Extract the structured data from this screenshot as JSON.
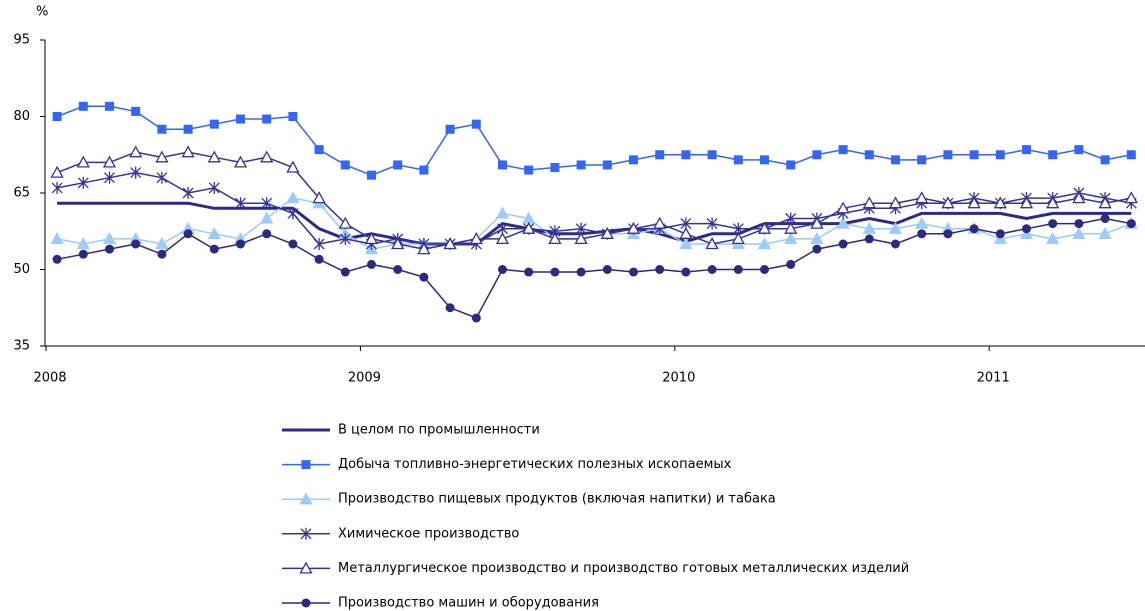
{
  "chart_data": {
    "type": "line",
    "y_unit": "%",
    "categories": [
      "2008",
      null,
      null,
      null,
      null,
      null,
      null,
      null,
      null,
      null,
      null,
      null,
      "2009",
      null,
      null,
      null,
      null,
      null,
      null,
      null,
      null,
      null,
      null,
      null,
      "2010",
      null,
      null,
      null,
      null,
      null,
      null,
      null,
      null,
      null,
      null,
      null,
      "2011",
      null,
      null,
      null,
      null,
      null
    ],
    "ylim": [
      35,
      95
    ],
    "yticks": [
      35,
      50,
      65,
      80,
      95
    ],
    "series": [
      {
        "name": "В целом по промышленности",
        "color": "#2b2a8c",
        "marker": "none",
        "width": 3,
        "values": [
          63,
          63,
          63,
          63,
          63,
          63,
          62,
          62,
          62,
          62,
          58,
          56,
          57,
          56,
          55,
          55,
          55,
          59,
          58,
          57,
          57,
          57.5,
          58,
          57,
          55.5,
          57,
          57,
          59,
          59,
          59,
          59,
          60,
          59,
          61,
          61,
          61,
          61,
          60,
          61,
          61,
          61,
          61
        ]
      },
      {
        "name": "Добыча топливно-энергетических полезных ископаемых",
        "color": "#3366ff",
        "marker": "square",
        "width": 1.5,
        "values": [
          80,
          82,
          82,
          81,
          77.5,
          77.5,
          78.5,
          79.5,
          79.5,
          80,
          73.5,
          70.5,
          68.5,
          70.5,
          69.5,
          77.5,
          78.5,
          70.5,
          69.5,
          70,
          70.5,
          70.5,
          71.5,
          72.5,
          72.5,
          72.5,
          71.5,
          71.5,
          70.5,
          72.5,
          73.5,
          72.5,
          71.5,
          71.5,
          72.5,
          72.5,
          72.5,
          73.5,
          72.5,
          73.5,
          71.5,
          72.5
        ]
      },
      {
        "name": "Производство пищевых продуктов (включая напитки) и табака",
        "color": "#99ccff",
        "marker": "triangle",
        "width": 1.5,
        "values": [
          56,
          55,
          56,
          56,
          55,
          58,
          57,
          56,
          60,
          64,
          63,
          57,
          54,
          55,
          55,
          55,
          56,
          61,
          60,
          56,
          56,
          57,
          57,
          58,
          55,
          55,
          55,
          55,
          56,
          56,
          59,
          58,
          58,
          59,
          58,
          58,
          56,
          57,
          56,
          57,
          57,
          59
        ]
      },
      {
        "name": "Химическое производство",
        "color": "#333399",
        "marker": "star",
        "width": 1.5,
        "values": [
          66,
          67,
          68,
          69,
          68,
          65,
          66,
          63,
          63,
          61,
          55,
          56,
          55,
          56,
          55,
          55,
          55,
          58,
          58,
          57.5,
          58,
          57,
          58,
          58,
          59,
          59,
          58,
          58,
          60,
          60,
          61,
          62,
          62,
          63,
          63,
          64,
          63,
          64,
          64,
          65,
          64,
          63
        ]
      },
      {
        "name": "Металлургическое производство и производство готовых металлических изделий",
        "color": "#333399",
        "marker": "open-triangle",
        "width": 1.5,
        "values": [
          69,
          71,
          71,
          73,
          72,
          73,
          72,
          71,
          72,
          70,
          64,
          59,
          56,
          55,
          54,
          55,
          56,
          56,
          58,
          56,
          56,
          57,
          58,
          59,
          57,
          55,
          56,
          58,
          58,
          59,
          62,
          63,
          63,
          64,
          63,
          63,
          63,
          63,
          63,
          64,
          63,
          64
        ]
      },
      {
        "name": "Производство машин и оборудования",
        "color": "#2a2a80",
        "marker": "circle",
        "width": 1.5,
        "values": [
          52,
          53,
          54,
          55,
          53,
          57,
          54,
          55,
          57,
          55,
          52,
          49.5,
          51,
          50,
          48.5,
          42.5,
          40.5,
          50,
          49.5,
          49.5,
          49.5,
          50,
          49.5,
          50,
          49.5,
          50,
          50,
          50,
          51,
          54,
          55,
          56,
          55,
          57,
          57,
          58,
          57,
          58,
          59,
          59,
          60,
          59
        ]
      }
    ]
  }
}
